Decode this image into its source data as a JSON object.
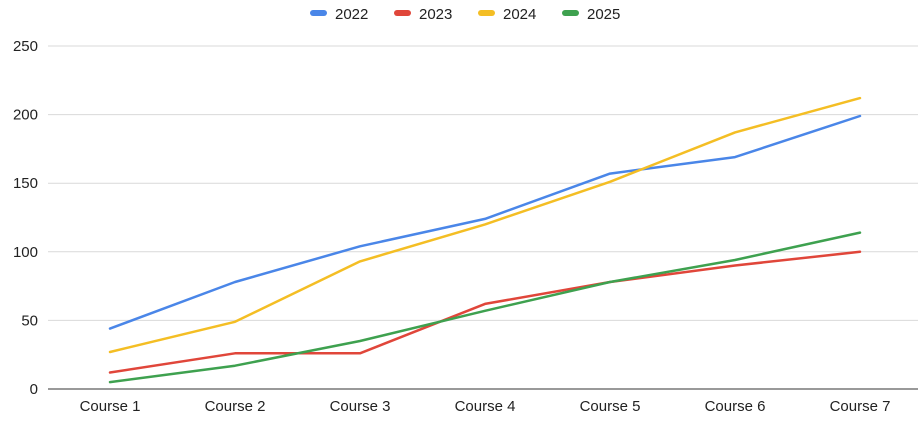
{
  "chart_data": {
    "type": "line",
    "title": "",
    "xlabel": "",
    "ylabel": "",
    "categories": [
      "Course 1",
      "Course 2",
      "Course 3",
      "Course 4",
      "Course 5",
      "Course 6",
      "Course 7"
    ],
    "ylim": [
      0,
      250
    ],
    "yticks": [
      0,
      50,
      100,
      150,
      200,
      250
    ],
    "grid": true,
    "legend_position": "top",
    "series": [
      {
        "name": "2022",
        "color": "#4a86e8",
        "values": [
          44,
          78,
          104,
          124,
          157,
          169,
          199
        ]
      },
      {
        "name": "2023",
        "color": "#e0463a",
        "values": [
          12,
          26,
          26,
          62,
          78,
          90,
          100
        ]
      },
      {
        "name": "2024",
        "color": "#f4be24",
        "values": [
          27,
          49,
          93,
          120,
          151,
          187,
          212
        ]
      },
      {
        "name": "2025",
        "color": "#3ea14f",
        "values": [
          5,
          17,
          35,
          57,
          78,
          94,
          114
        ]
      }
    ]
  }
}
